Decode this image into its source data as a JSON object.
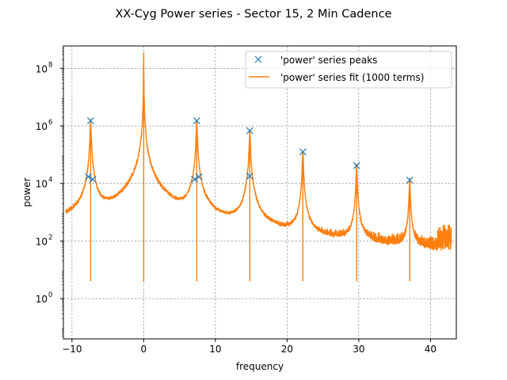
{
  "chart_data": {
    "type": "line",
    "title": "XX-Cyg Power series - Sector 15, 2 Min Cadence",
    "xlabel": "frequency",
    "ylabel": "power",
    "xlim": [
      -11.2,
      43.6
    ],
    "ylim": [
      0.04,
      600000000
    ],
    "yscale": "log",
    "grid": true,
    "legend_position": "top-right",
    "x_ticks": [
      {
        "value": -10,
        "label": "−10"
      },
      {
        "value": 0,
        "label": "0"
      },
      {
        "value": 10,
        "label": "10"
      },
      {
        "value": 20,
        "label": "20"
      },
      {
        "value": 30,
        "label": "30"
      },
      {
        "value": 40,
        "label": "40"
      }
    ],
    "y_ticks": [
      {
        "value": 1,
        "base": "10",
        "exp": "0"
      },
      {
        "value": 100,
        "base": "10",
        "exp": "2"
      },
      {
        "value": 10000,
        "base": "10",
        "exp": "4"
      },
      {
        "value": 1000000,
        "base": "10",
        "exp": "6"
      },
      {
        "value": 100000000,
        "base": "10",
        "exp": "8"
      }
    ],
    "series": [
      {
        "name": "'power' series peaks",
        "style": "markers",
        "marker": "x",
        "color": "#1f77b4",
        "points": [
          {
            "x": -7.4,
            "y": 1500000
          },
          {
            "x": -7.7,
            "y": 17000
          },
          {
            "x": -7.1,
            "y": 14000
          },
          {
            "x": 7.4,
            "y": 1500000
          },
          {
            "x": 7.1,
            "y": 14000
          },
          {
            "x": 7.7,
            "y": 17000
          },
          {
            "x": 14.8,
            "y": 680000
          },
          {
            "x": 14.8,
            "y": 18000
          },
          {
            "x": 22.2,
            "y": 125000
          },
          {
            "x": 29.7,
            "y": 42000
          },
          {
            "x": 37.1,
            "y": 13000
          }
        ]
      },
      {
        "name": "'power' series fit (1000 terms)",
        "style": "line",
        "color": "#ff7f0e",
        "noise_floor": 20,
        "x_range": [
          -10.9,
          42.9
        ],
        "peaks": [
          {
            "x": -7.4,
            "y": 1500000
          },
          {
            "x": 0.0,
            "y": 350000000
          },
          {
            "x": 7.4,
            "y": 1500000
          },
          {
            "x": 14.8,
            "y": 680000
          },
          {
            "x": 22.2,
            "y": 125000
          },
          {
            "x": 29.7,
            "y": 42000
          },
          {
            "x": 37.1,
            "y": 13000
          }
        ]
      }
    ]
  },
  "colors": {
    "peaks_marker": "#1f77b4",
    "fit_line": "#ff7f0e",
    "grid": "#7f7f7f"
  }
}
